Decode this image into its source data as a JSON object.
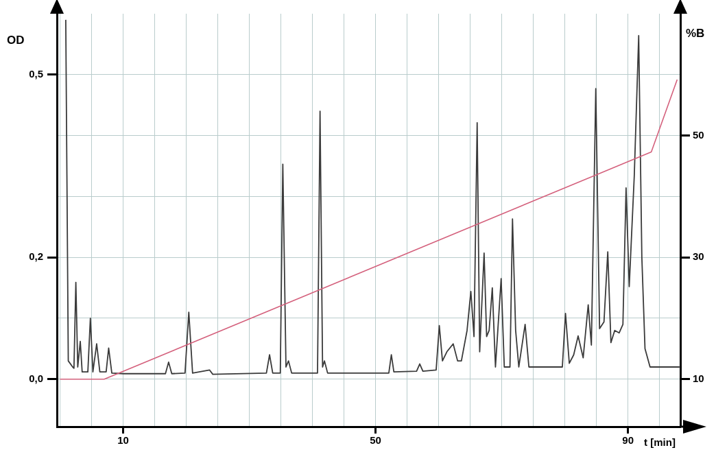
{
  "chart_data": {
    "type": "line",
    "xlabel": "t [min]",
    "ylabel": "OD",
    "y2label": "%B",
    "xlim": [
      -0.5,
      98.3
    ],
    "ylim": [
      -0.078,
      0.6
    ],
    "y2lim": [
      2.2,
      70
    ],
    "xticks": [
      {
        "value": 0,
        "label": null
      },
      {
        "value": 5,
        "label": null
      },
      10,
      {
        "value": 15,
        "label": null
      },
      {
        "value": 20,
        "label": null
      },
      {
        "value": 25,
        "label": null
      },
      {
        "value": 30,
        "label": null
      },
      {
        "value": 35,
        "label": null
      },
      {
        "value": 40,
        "label": null
      },
      {
        "value": 45,
        "label": null
      },
      50,
      {
        "value": 55,
        "label": null
      },
      {
        "value": 60,
        "label": null
      },
      {
        "value": 65,
        "label": null
      },
      {
        "value": 70,
        "label": null
      },
      {
        "value": 75,
        "label": null
      },
      {
        "value": 80,
        "label": null
      },
      {
        "value": 85,
        "label": null
      },
      90,
      {
        "value": 95,
        "label": null
      }
    ],
    "yticks": [
      {
        "value": 0,
        "label": "0,0"
      },
      {
        "value": 0.1,
        "label": null
      },
      {
        "value": 0.2,
        "label": "0,2"
      },
      {
        "value": 0.3,
        "label": null
      },
      {
        "value": 0.4,
        "label": null
      },
      {
        "value": 0.5,
        "label": "0,5"
      }
    ],
    "y2ticks": [
      10,
      30,
      50
    ],
    "grid": true,
    "marker": "none",
    "line_style": "solid",
    "series": [
      {
        "color": "#3a3a3a",
        "x": [
          0.9,
          1.3,
          2.0,
          2.2,
          2.5,
          2.8,
          3.2,
          3.5,
          4.4,
          4.8,
          5.2,
          5.8,
          6.3,
          7.3,
          7.7,
          8.2,
          10,
          16.7,
          17.2,
          17.7,
          19.8,
          20.4,
          21.0,
          23.7,
          24.2,
          32.7,
          33.2,
          33.7,
          34.9,
          35.3,
          35.8,
          36.2,
          36.7,
          40.8,
          41.2,
          41.6,
          41.9,
          42.4,
          52.1,
          52.5,
          52.9,
          56.5,
          57.0,
          57.5,
          59.6,
          60.1,
          60.6,
          61.3,
          62.3,
          63.0,
          63.6,
          64.5,
          65.1,
          65.6,
          66.1,
          66.5,
          67.2,
          67.6,
          68.0,
          68.5,
          69.0,
          69.9,
          70.4,
          71.3,
          71.7,
          72.2,
          72.7,
          73.7,
          74.3,
          79.6,
          80.1,
          80.7,
          81.4,
          82.1,
          82.9,
          83.7,
          84.2,
          84.9,
          85.5,
          86.2,
          86.8,
          87.3,
          87.9,
          88.6,
          89.2,
          89.7,
          90.2,
          91.0,
          91.7,
          92.2,
          92.7,
          93.5,
          98.3
        ],
        "values": [
          0.59,
          0.03,
          0.02,
          0.018,
          0.159,
          0.02,
          0.062,
          0.012,
          0.012,
          0.1,
          0.012,
          0.058,
          0.012,
          0.012,
          0.051,
          0.01,
          0.009,
          0.009,
          0.028,
          0.009,
          0.01,
          0.11,
          0.01,
          0.015,
          0.008,
          0.01,
          0.04,
          0.01,
          0.01,
          0.353,
          0.02,
          0.03,
          0.01,
          0.01,
          0.44,
          0.02,
          0.03,
          0.01,
          0.01,
          0.04,
          0.012,
          0.013,
          0.025,
          0.013,
          0.015,
          0.088,
          0.03,
          0.045,
          0.058,
          0.03,
          0.03,
          0.08,
          0.144,
          0.07,
          0.421,
          0.045,
          0.207,
          0.07,
          0.08,
          0.15,
          0.02,
          0.165,
          0.02,
          0.02,
          0.263,
          0.08,
          0.02,
          0.09,
          0.02,
          0.02,
          0.108,
          0.026,
          0.04,
          0.071,
          0.035,
          0.122,
          0.056,
          0.477,
          0.083,
          0.094,
          0.209,
          0.06,
          0.08,
          0.076,
          0.09,
          0.314,
          0.152,
          0.334,
          0.564,
          0.2,
          0.05,
          0.02,
          0.02
        ]
      },
      {
        "color": "#d4607c",
        "axis": "y2",
        "x": [
          0,
          7,
          93.7,
          97.8
        ],
        "values": [
          10,
          10,
          47.3,
          59.2
        ]
      }
    ]
  }
}
